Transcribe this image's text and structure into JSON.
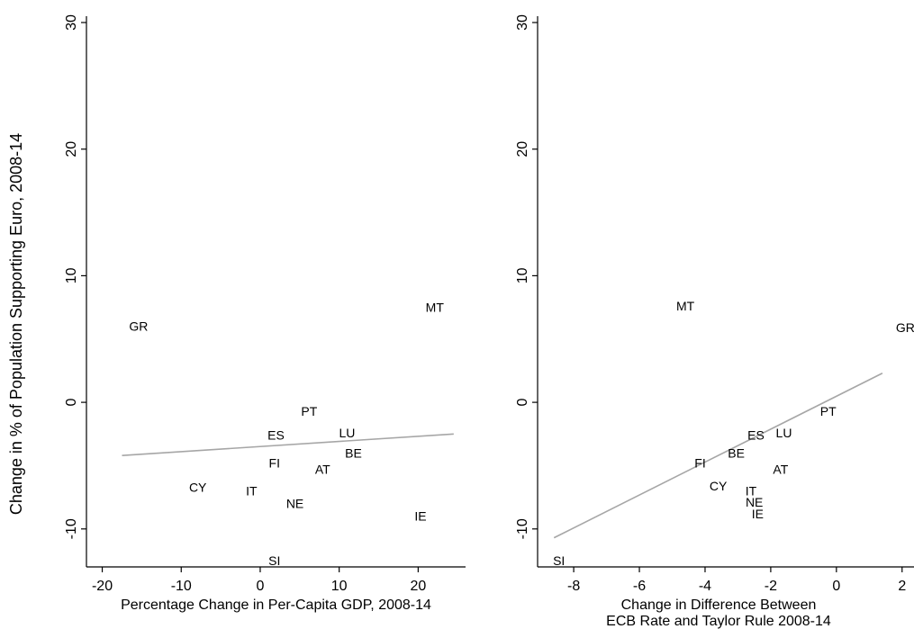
{
  "ylabel": "Change in % of Population Supporting Euro, 2008-14",
  "colors": {
    "fit_line": "#a6a6a6",
    "axis": "#000000",
    "text": "#000000"
  },
  "chart_data": [
    {
      "type": "scatter",
      "title": "",
      "xlabel": "Percentage Change in Per-Capita GDP, 2008-14",
      "xlabel_lines": [
        "Percentage Change in Per-Capita GDP, 2008-14"
      ],
      "ylabel": "Change in % of Population Supporting Euro, 2008-14",
      "xlim": [
        -22,
        26
      ],
      "ylim": [
        -13,
        30.5
      ],
      "xticks": [
        -20,
        -10,
        0,
        10,
        20
      ],
      "yticks": [
        -10,
        0,
        10,
        20,
        30
      ],
      "grid": false,
      "points": [
        {
          "label": "GR",
          "x": -15.4,
          "y": 6.0
        },
        {
          "label": "MT",
          "x": 22.1,
          "y": 7.5
        },
        {
          "label": "PT",
          "x": 6.2,
          "y": -0.7
        },
        {
          "label": "ES",
          "x": 2.0,
          "y": -2.6
        },
        {
          "label": "LU",
          "x": 11.0,
          "y": -2.4
        },
        {
          "label": "BE",
          "x": 11.8,
          "y": -4.0
        },
        {
          "label": "FI",
          "x": 1.8,
          "y": -4.8
        },
        {
          "label": "AT",
          "x": 7.9,
          "y": -5.3
        },
        {
          "label": "CY",
          "x": -7.9,
          "y": -6.7
        },
        {
          "label": "IT",
          "x": -1.1,
          "y": -7.0
        },
        {
          "label": "NE",
          "x": 4.4,
          "y": -8.0
        },
        {
          "label": "IE",
          "x": 20.3,
          "y": -9.0
        },
        {
          "label": "SI",
          "x": 1.8,
          "y": -12.5
        }
      ],
      "fit_line": {
        "x": [
          -17.5,
          24.5
        ],
        "y": [
          -4.2,
          -2.5
        ]
      }
    },
    {
      "type": "scatter",
      "title": "",
      "xlabel": "Change in Difference Between ECB Rate and Taylor Rule 2008-14",
      "xlabel_lines": [
        "Change in Difference Between",
        "ECB Rate and Taylor Rule 2008-14"
      ],
      "ylabel": "",
      "xlim": [
        -9.1,
        2.5
      ],
      "ylim": [
        -13,
        30.5
      ],
      "xticks": [
        -8,
        -6,
        -4,
        -2,
        0,
        2
      ],
      "yticks": [
        -10,
        0,
        10,
        20,
        30
      ],
      "grid": false,
      "points": [
        {
          "label": "MT",
          "x": -4.6,
          "y": 7.6
        },
        {
          "label": "GR",
          "x": 2.1,
          "y": 5.9
        },
        {
          "label": "PT",
          "x": -0.25,
          "y": -0.7
        },
        {
          "label": "ES",
          "x": -2.45,
          "y": -2.6
        },
        {
          "label": "LU",
          "x": -1.6,
          "y": -2.4
        },
        {
          "label": "BE",
          "x": -3.05,
          "y": -4.0
        },
        {
          "label": "FI",
          "x": -4.15,
          "y": -4.8
        },
        {
          "label": "AT",
          "x": -1.7,
          "y": -5.3
        },
        {
          "label": "CY",
          "x": -3.6,
          "y": -6.6
        },
        {
          "label": "IT",
          "x": -2.6,
          "y": -7.0
        },
        {
          "label": "NE",
          "x": -2.5,
          "y": -7.9
        },
        {
          "label": "IE",
          "x": -2.4,
          "y": -8.8
        },
        {
          "label": "SI",
          "x": -8.45,
          "y": -12.5
        }
      ],
      "fit_line": {
        "x": [
          -8.6,
          1.4
        ],
        "y": [
          -10.7,
          2.3
        ]
      }
    }
  ]
}
